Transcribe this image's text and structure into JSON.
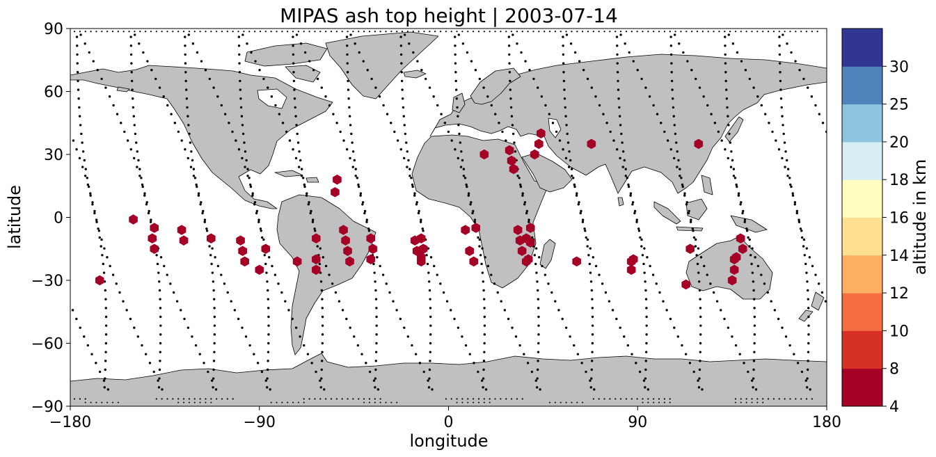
{
  "title": "MIPAS ash top height | 2003-07-14",
  "xlabel": "longitude",
  "ylabel": "latitude",
  "x_ticks": [
    "−180",
    "−90",
    "0",
    "90",
    "180"
  ],
  "y_ticks": [
    "90",
    "60",
    "30",
    "0",
    "−30",
    "−60",
    "−90"
  ],
  "colorbar": {
    "label": "altitude in km",
    "ticks": [
      "4",
      "8",
      "10",
      "12",
      "14",
      "16",
      "18",
      "20",
      "25",
      "30"
    ],
    "bins": [
      {
        "from": 4,
        "to": 8,
        "color": "#a50026"
      },
      {
        "from": 8,
        "to": 10,
        "color": "#d73027"
      },
      {
        "from": 10,
        "to": 12,
        "color": "#f46d43"
      },
      {
        "from": 12,
        "to": 14,
        "color": "#fdae61"
      },
      {
        "from": 14,
        "to": 16,
        "color": "#fee090"
      },
      {
        "from": 16,
        "to": 18,
        "color": "#fffebf"
      },
      {
        "from": 18,
        "to": 20,
        "color": "#d6eef4"
      },
      {
        "from": 20,
        "to": 25,
        "color": "#8ec4de"
      },
      {
        "from": 25,
        "to": 30,
        "color": "#4f83bb"
      },
      {
        "from": 30,
        "to": 30,
        "color": "#313695"
      }
    ]
  },
  "colors": {
    "land": "#c0c0c0",
    "coast": "#000000",
    "track": "#000000",
    "detection": "#a50026"
  },
  "chart_data": {
    "type": "scatter",
    "projection": "plate-carree",
    "xlim": [
      -180,
      180
    ],
    "ylim": [
      -90,
      90
    ],
    "detections": [
      [
        -166,
        -30
      ],
      [
        -150,
        -1
      ],
      [
        -140,
        -5
      ],
      [
        -141,
        -10
      ],
      [
        -140,
        -15
      ],
      [
        -127,
        -6
      ],
      [
        -126,
        -11
      ],
      [
        -113,
        -10
      ],
      [
        -99,
        -11
      ],
      [
        -98,
        -16
      ],
      [
        -97,
        -21
      ],
      [
        -90,
        -25
      ],
      [
        -87,
        -15
      ],
      [
        -72,
        -21
      ],
      [
        -63,
        -25
      ],
      [
        -63,
        -20
      ],
      [
        -63,
        -10
      ],
      [
        -53,
        18
      ],
      [
        -54,
        12
      ],
      [
        -50,
        -6
      ],
      [
        -49,
        -11
      ],
      [
        -48,
        -16
      ],
      [
        -47,
        -21
      ],
      [
        -37,
        -10
      ],
      [
        -36,
        -15
      ],
      [
        -37,
        -20
      ],
      [
        -16,
        -11
      ],
      [
        -15,
        -16
      ],
      [
        -13,
        -21
      ],
      [
        -13,
        -10
      ],
      [
        -12,
        -15
      ],
      [
        -13,
        -19
      ],
      [
        8,
        -6
      ],
      [
        10,
        -16
      ],
      [
        12,
        -21
      ],
      [
        13,
        -5
      ],
      [
        17,
        30
      ],
      [
        29,
        32
      ],
      [
        30,
        27
      ],
      [
        31,
        23
      ],
      [
        33,
        -6
      ],
      [
        34,
        -11
      ],
      [
        35,
        -16
      ],
      [
        37,
        -21
      ],
      [
        37,
        -10
      ],
      [
        38,
        -20
      ],
      [
        39,
        -5
      ],
      [
        39,
        -12
      ],
      [
        41,
        30
      ],
      [
        43,
        35
      ],
      [
        44,
        40
      ],
      [
        61,
        -21
      ],
      [
        68,
        35
      ],
      [
        87,
        -25
      ],
      [
        87,
        -21
      ],
      [
        88,
        -20
      ],
      [
        113,
        -32
      ],
      [
        115,
        -15
      ],
      [
        119,
        35
      ],
      [
        135,
        -30
      ],
      [
        136,
        -25
      ],
      [
        136,
        -20
      ],
      [
        137,
        -19
      ],
      [
        139,
        -10
      ],
      [
        140,
        -15
      ]
    ]
  }
}
